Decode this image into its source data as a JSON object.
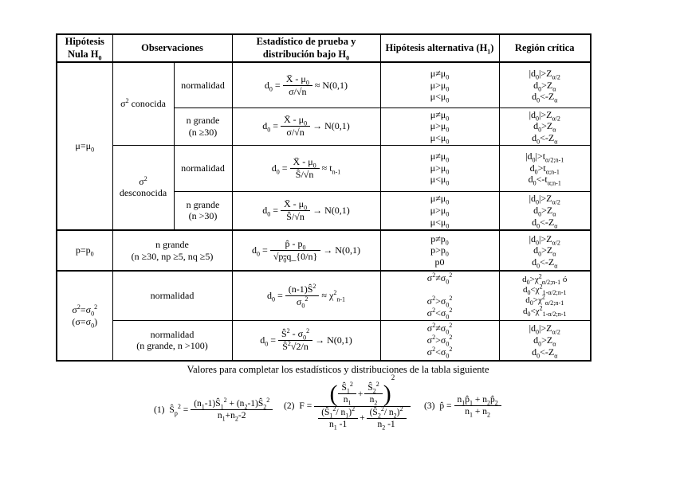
{
  "table": {
    "headers": {
      "h0": "Hipótesis Nula H_{0}",
      "obs": "Observaciones",
      "stat": "Estadístico de prueba y distribución bajo H_{0}",
      "alt": "Hipótesis alternativa (H_{1})",
      "crit": "Región crítica"
    },
    "null_hypotheses": {
      "mu": "μ=μ_{0}",
      "p": "p=p_{0}",
      "sigma": [
        "σ^{2}=σ_{0}^{2}",
        "(σ=σ_{0})"
      ]
    },
    "rows": [
      {
        "obs_group": [
          "σ^{2} conocida"
        ],
        "obs": [
          "normalidad"
        ],
        "stat": {
          "pre": "d_{0} =",
          "num": "X̄ - μ_{0}",
          "den": "σ/√{n}",
          "tail": "≈ N(0,1)"
        },
        "h1": [
          "μ≠μ_{0}",
          "μ>μ_{0}",
          "μ<μ_{0}"
        ],
        "crit": [
          "|d_{0}|>Z_{α/2}",
          "d_{0}>Z_{α}",
          "d_{0}<-Z_{α}"
        ]
      },
      {
        "obs": [
          "n grande",
          "(n ≥30)"
        ],
        "stat": {
          "pre": "d_{0} =",
          "num": "X̄ - μ_{0}",
          "den": "σ/√{n}",
          "tail": "→ N(0,1)"
        },
        "h1": [
          "μ≠μ_{0}",
          "μ>μ_{0}",
          "μ<μ_{0}"
        ],
        "crit": [
          "|d_{0}|>Z_{α/2}",
          "d_{0}>Z_{α}",
          "d_{0}<-Z_{α}"
        ]
      },
      {
        "obs_group": [
          "σ^{2}",
          "desconocida"
        ],
        "obs": [
          "normalidad"
        ],
        "stat": {
          "pre": "d_{0} =",
          "num": "X̄ - μ_{0}",
          "den": "Ŝ/√{n}",
          "tail": "≈ t_{n-1}"
        },
        "h1": [
          "μ≠μ_{0}",
          "μ>μ_{0}",
          "μ<μ_{0}"
        ],
        "crit": [
          "|d_{0}|>t_{α/2;n-1}",
          "d_{0}>t_{α;n-1}",
          "d_{0}<-t_{α;n-1}"
        ]
      },
      {
        "obs": [
          "n grande",
          "(n >30)"
        ],
        "stat": {
          "pre": "d_{0} =",
          "num": "X̄ - μ_{0}",
          "den": "Ŝ/√{n}",
          "tail": "→ N(0,1)"
        },
        "h1": [
          "μ≠μ_{0}",
          "μ>μ_{0}",
          "μ<μ_{0}"
        ],
        "crit": [
          "|d_{0}|>Z_{α/2}",
          "d_{0}>Z_{α}",
          "d_{0}<-Z_{α}"
        ]
      },
      {
        "obs": [
          "n grande",
          "(n ≥30, np ≥5, nq ≥5)"
        ],
        "stat": {
          "pre": "d_{0} =",
          "num": "p̂ - p_{0}",
          "den": "√{p_{0}q_{0}/n}",
          "tail": "→ N(0,1)"
        },
        "h1": [
          "p≠p_{0}",
          "p>p_{0}",
          "p<p_{0}"
        ],
        "crit": [
          "|d_{0}|>Z_{α/2}",
          "d_{0}>Z_{α}",
          "d_{0}<-Z_{α}"
        ]
      },
      {
        "obs": [
          "normalidad"
        ],
        "stat": {
          "pre": "d_{0} =",
          "num": "(n-1)Ŝ^{2}",
          "den": "σ_{0}^{2}",
          "tail": "≈ χ^{2}_{n-1}"
        },
        "h1": [
          "σ^{2}≠σ_{0}^{2}",
          "",
          "σ^{2}>σ_{0}^{2}",
          "σ^{2}<σ_{0}^{2}"
        ],
        "crit": [
          "d_{0}>χ^{2}_{α/2;n-1} ó",
          "d_{0}<χ^{2}_{1-α/2;n-1}",
          "d_{0}>χ^{2}_{α/2;n-1}",
          "d_{0}<χ^{2}_{1-α/2;n-1}"
        ]
      },
      {
        "obs": [
          "normalidad",
          "(n grande, n >100)"
        ],
        "stat": {
          "pre": "d_{0} =",
          "num": "Ŝ^{2} - σ_{0}^{2}",
          "den": "Ŝ^{2}√{2/n}",
          "tail": "→ N(0,1)"
        },
        "h1": [
          "σ^{2}≠σ_{0}^{2}",
          "σ^{2}>σ_{0}^{2}",
          "σ^{2}<σ_{0}^{2}"
        ],
        "crit": [
          "|d_{0}|>Z_{α/2}",
          "d_{0}>Z_{α}",
          "d_{0}<-Z_{α}"
        ]
      }
    ]
  },
  "footer": {
    "caption": "Valores para completar los estadísticos y distribuciones de la tabla siguiente",
    "f1": {
      "label": "(1)",
      "lhs": "Ŝ_{p}^{2} =",
      "num": "(n_{1}-1)Ŝ_{1}^{2} + (n_{2}-1)Ŝ_{2}^{2}",
      "den": "n_{1}+n_{2}-2"
    },
    "f2": {
      "label": "(2)",
      "lhs": "F =",
      "exp": "2",
      "plus_top": "+",
      "plus_bottom": "+",
      "t1n": "Ŝ_{1}^{2}",
      "t1d": "n_{1}",
      "t2n": "Ŝ_{2}^{2}",
      "t2d": "n_{2}",
      "b1n": "(Ŝ_{1}^{2}/ n_{1})^{2}",
      "b1d": "n_{1} -1",
      "b2n": "(Ŝ_{2}^{2}/ n_{2})^{2}",
      "b2d": "n_{2} -1"
    },
    "f3": {
      "label": "(3)",
      "lhs": "p̂ =",
      "num": "n_{1}p̂_{1} + n_{2}p̂_{2}",
      "den": "n_{1} + n_{2}"
    }
  }
}
